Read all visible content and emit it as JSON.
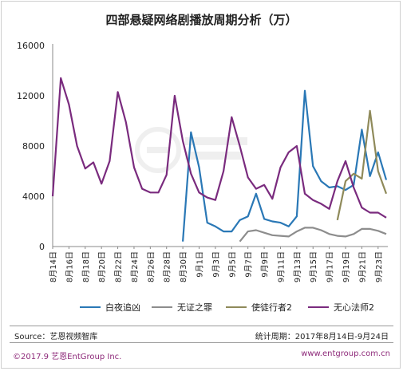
{
  "colors": {
    "baiye": "#2a78b6",
    "wuzheng": "#8d8d8d",
    "shitu": "#8f8a5a",
    "wuxin": "#7a2b7e",
    "grid": "#d9d9d9",
    "axis": "#8a8a8a",
    "footer": "#8e2a7a"
  },
  "source": {
    "left": "Source：艺恩视频智库",
    "right": "统计周期：2017年8月14日-9月24日"
  },
  "footer": {
    "left": "©2017.9  艺恩EntGroup Inc.",
    "right": "www.entgroup.com.cn"
  },
  "watermark_icon": "entgroup-logo",
  "chart_data": {
    "type": "line",
    "title": "四部悬疑网络剧播放周期分析（万）",
    "xlabel": "",
    "ylabel": "",
    "ylim": [
      0,
      16000
    ],
    "yticks": [
      0,
      4000,
      8000,
      12000,
      16000
    ],
    "grid": false,
    "legend": "bottom",
    "x_tick_labels": [
      "8月14日",
      "8月16日",
      "8月18日",
      "8月20日",
      "8月22日",
      "8月24日",
      "8月26日",
      "8月28日",
      "8月30日",
      "9月1日",
      "9月3日",
      "9月5日",
      "9月7日",
      "9月9日",
      "9月11日",
      "9月13日",
      "9月15日",
      "9月17日",
      "9月19日",
      "9月21日",
      "9月23日"
    ],
    "x": [
      "8月14日",
      "8月15日",
      "8月16日",
      "8月17日",
      "8月18日",
      "8月19日",
      "8月20日",
      "8月21日",
      "8月22日",
      "8月23日",
      "8月24日",
      "8月25日",
      "8月26日",
      "8月27日",
      "8月28日",
      "8月29日",
      "8月30日",
      "8月31日",
      "9月1日",
      "9月2日",
      "9月3日",
      "9月4日",
      "9月5日",
      "9月6日",
      "9月7日",
      "9月8日",
      "9月9日",
      "9月10日",
      "9月11日",
      "9月12日",
      "9月13日",
      "9月14日",
      "9月15日",
      "9月16日",
      "9月17日",
      "9月18日",
      "9月19日",
      "9月20日",
      "9月21日",
      "9月22日",
      "9月23日",
      "9月24日"
    ],
    "series": [
      {
        "name": "白夜追凶",
        "color_key": "baiye",
        "values": [
          null,
          null,
          null,
          null,
          null,
          null,
          null,
          null,
          null,
          null,
          null,
          null,
          null,
          null,
          null,
          null,
          400,
          9100,
          6300,
          1900,
          1600,
          1200,
          1200,
          2100,
          2400,
          4200,
          2200,
          2000,
          1900,
          1600,
          2400,
          12400,
          6400,
          5200,
          4700,
          4800,
          4500,
          4900,
          9300,
          5600,
          7500,
          5300
        ]
      },
      {
        "name": "无证之罪",
        "color_key": "wuzheng",
        "values": [
          null,
          null,
          null,
          null,
          null,
          null,
          null,
          null,
          null,
          null,
          null,
          null,
          null,
          null,
          null,
          null,
          null,
          null,
          null,
          null,
          null,
          null,
          null,
          400,
          1200,
          1300,
          1100,
          900,
          850,
          800,
          1200,
          1500,
          1500,
          1300,
          1000,
          850,
          800,
          1000,
          1400,
          1400,
          1250,
          1000
        ]
      },
      {
        "name": "使徒行者2",
        "color_key": "shitu",
        "values": [
          null,
          null,
          null,
          null,
          null,
          null,
          null,
          null,
          null,
          null,
          null,
          null,
          null,
          null,
          null,
          null,
          null,
          null,
          null,
          null,
          null,
          null,
          null,
          null,
          null,
          null,
          null,
          null,
          null,
          null,
          null,
          null,
          null,
          null,
          null,
          2100,
          5200,
          5800,
          5400,
          10800,
          6000,
          4200
        ]
      },
      {
        "name": "无心法师2",
        "color_key": "wuxin",
        "values": [
          4000,
          13400,
          11300,
          8000,
          6200,
          6700,
          5000,
          6800,
          12300,
          9900,
          6300,
          4600,
          4300,
          4300,
          5700,
          12000,
          8400,
          5800,
          4300,
          3900,
          3700,
          6000,
          10300,
          8000,
          5500,
          4600,
          4900,
          3800,
          6300,
          7500,
          8000,
          4200,
          3700,
          3400,
          3000,
          5200,
          6800,
          4700,
          3100,
          2700,
          2700,
          2300
        ]
      }
    ]
  }
}
